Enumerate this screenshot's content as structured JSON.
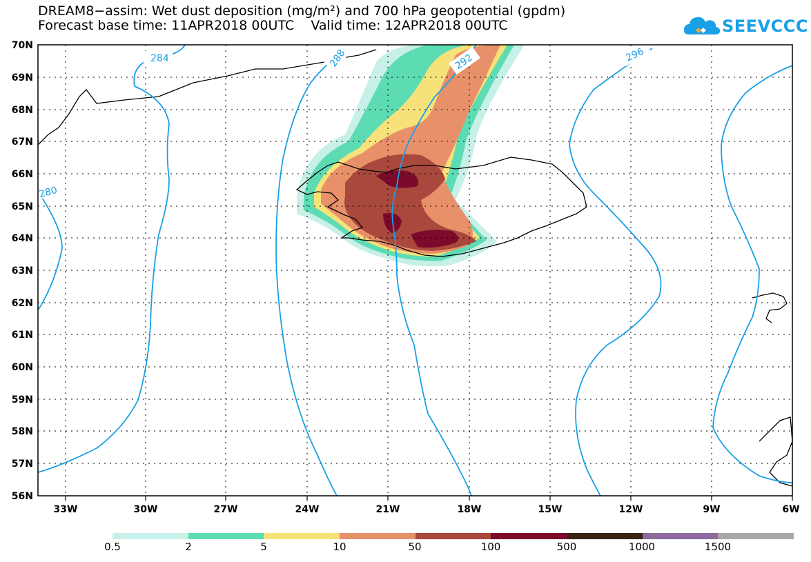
{
  "title": {
    "line1": "DREAM8−assim: Wet dust deposition (mg/m²) and 700 hPa geopotential (gpdm)",
    "line2": "Forecast base time: 11APR2018 00UTC    Valid time: 12APR2018 00UTC"
  },
  "logo": {
    "text": "SEEVCCC",
    "icon": "cloud-icon",
    "color": "#1aa0e6"
  },
  "map": {
    "lat_range": [
      56,
      70
    ],
    "lon_range": [
      -34.5,
      -6
    ],
    "lat_labels": [
      "70N",
      "69N",
      "68N",
      "67N",
      "66N",
      "65N",
      "64N",
      "63N",
      "62N",
      "61N",
      "60N",
      "59N",
      "58N",
      "57N",
      "56N"
    ],
    "lon_labels": [
      "33W",
      "30W",
      "27W",
      "24W",
      "21W",
      "18W",
      "15W",
      "12W",
      "9W",
      "6W"
    ],
    "contour_color": "#1aa0e6",
    "contour_labels": [
      "284",
      "288",
      "292",
      "296",
      "280"
    ]
  },
  "colorbar": {
    "labels": [
      "0.5",
      "2",
      "5",
      "10",
      "50",
      "100",
      "500",
      "1000",
      "1500"
    ],
    "colors": [
      "#c6f0e8",
      "#5ddcb4",
      "#f7e27a",
      "#e8906a",
      "#a9483c",
      "#7c0a2b",
      "#3a2215",
      "#8e6a9e",
      "#a8a8a8"
    ]
  }
}
